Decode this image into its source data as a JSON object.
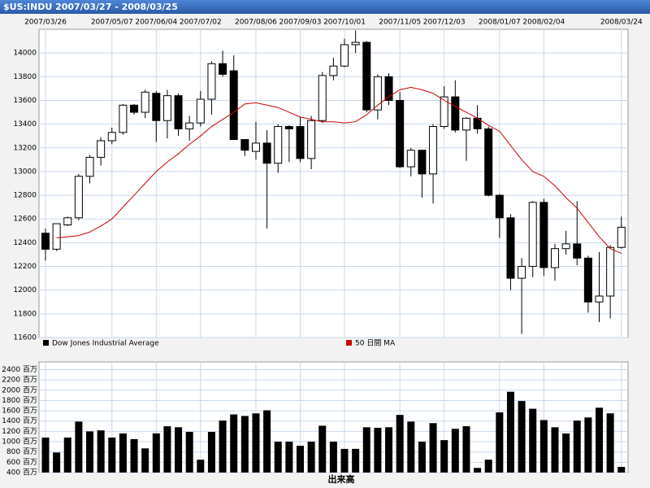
{
  "chart_data": [
    {
      "type": "candlestick",
      "title": "$US:INDU 2007/03/27 - 2008/03/25",
      "categories": [
        "2007/03/26",
        null,
        null,
        null,
        null,
        null,
        "2007/05/07",
        null,
        null,
        null,
        "2007/06/04",
        null,
        null,
        null,
        "2007/07/02",
        null,
        null,
        null,
        null,
        "2007/08/06",
        null,
        null,
        null,
        "2007/09/03",
        null,
        null,
        null,
        "2007/10/01",
        null,
        null,
        null,
        null,
        "2007/11/05",
        null,
        null,
        null,
        "2007/12/03",
        null,
        null,
        null,
        null,
        "2008/01/07",
        null,
        null,
        null,
        "2008/02/04",
        null,
        null,
        null,
        null,
        null,
        null,
        "2008/03/24"
      ],
      "series": [
        {
          "name": "Dow Jones Industrial Average",
          "color": "#000000",
          "open": [
            12480,
            12345,
            12550,
            12610,
            12960,
            13120,
            13260,
            13330,
            13560,
            13500,
            13660,
            13430,
            13640,
            13360,
            13410,
            13610,
            13910,
            13850,
            13270,
            13170,
            13240,
            13070,
            13380,
            13380,
            13110,
            13430,
            13810,
            13890,
            14070,
            14090,
            13520,
            13800,
            13600,
            13040,
            13180,
            12980,
            13380,
            13630,
            13350,
            13450,
            13360,
            12800,
            12610,
            12100,
            12200,
            12740,
            12190,
            12350,
            12390,
            12270,
            11900,
            11950,
            12360
          ],
          "high": [
            12520,
            12560,
            12620,
            12980,
            13140,
            13290,
            13370,
            13570,
            13570,
            13690,
            13680,
            13690,
            13660,
            13470,
            13680,
            13930,
            14020,
            13980,
            13270,
            13420,
            13350,
            13400,
            13390,
            13460,
            13470,
            13840,
            13960,
            14120,
            14190,
            14100,
            13820,
            13830,
            13670,
            13200,
            13180,
            13400,
            13720,
            13770,
            13460,
            13560,
            13380,
            12810,
            12640,
            12270,
            12750,
            12770,
            12390,
            12500,
            12750,
            12290,
            12320,
            12380,
            12620
          ],
          "low": [
            12250,
            12330,
            12540,
            12590,
            12900,
            13050,
            13230,
            13310,
            13480,
            13450,
            13250,
            13280,
            13300,
            13260,
            13380,
            13480,
            13800,
            13270,
            13130,
            13100,
            12520,
            12990,
            13080,
            13080,
            13020,
            13410,
            13770,
            13880,
            14000,
            13500,
            13440,
            13560,
            13030,
            12960,
            12780,
            12730,
            13360,
            13330,
            13090,
            13320,
            12790,
            12440,
            12000,
            11630,
            12110,
            12120,
            12080,
            12300,
            12210,
            11810,
            11730,
            11760,
            12350
          ],
          "close": [
            12345,
            12560,
            12610,
            12960,
            13120,
            13260,
            13330,
            13560,
            13500,
            13670,
            13430,
            13640,
            13360,
            13410,
            13610,
            13910,
            13820,
            13270,
            13180,
            13240,
            13070,
            13380,
            13360,
            13110,
            13430,
            13810,
            13890,
            14070,
            14090,
            13520,
            13800,
            13600,
            13040,
            13180,
            12980,
            13380,
            13630,
            13350,
            13450,
            13360,
            12800,
            12610,
            12100,
            12200,
            12740,
            12190,
            12350,
            12390,
            12270,
            11900,
            11950,
            12360,
            12530
          ]
        },
        {
          "name": "50 日間 MA",
          "type": "line",
          "color": "#cc0000",
          "values": [
            null,
            12440,
            12450,
            12460,
            12490,
            12540,
            12600,
            12700,
            12800,
            12900,
            13000,
            13080,
            13150,
            13230,
            13300,
            13380,
            13440,
            13500,
            13570,
            13580,
            13560,
            13540,
            13500,
            13460,
            13440,
            13420,
            13420,
            13410,
            13420,
            13480,
            13560,
            13630,
            13690,
            13710,
            13690,
            13660,
            13600,
            13550,
            13500,
            13450,
            13390,
            13340,
            13220,
            13100,
            13000,
            12960,
            12880,
            12780,
            12690,
            12570,
            12450,
            12350,
            12310
          ]
        }
      ],
      "ylim": [
        11600,
        14200
      ],
      "yticks": [
        11600,
        11800,
        12000,
        12200,
        12400,
        12600,
        12800,
        13000,
        13200,
        13400,
        13600,
        13800,
        14000
      ],
      "grid": true
    },
    {
      "type": "bar",
      "xlabel": "出来高",
      "color": "#000000",
      "values": [
        1080,
        790,
        1080,
        1390,
        1200,
        1220,
        1080,
        1160,
        1050,
        870,
        1160,
        1300,
        1280,
        1190,
        650,
        1190,
        1410,
        1530,
        1500,
        1550,
        1610,
        1000,
        1000,
        920,
        1000,
        1310,
        1000,
        860,
        860,
        1280,
        1270,
        1280,
        1520,
        1390,
        1000,
        1360,
        1030,
        1250,
        1300,
        490,
        650,
        1570,
        1970,
        1790,
        1640,
        1420,
        1280,
        1160,
        1410,
        1470,
        1660,
        1550,
        510
      ],
      "ylim": [
        400,
        2550
      ],
      "yticks": [
        {
          "value": 400,
          "label": "400 百万"
        },
        {
          "value": 600,
          "label": "600 百万"
        },
        {
          "value": 800,
          "label": "800 百万"
        },
        {
          "value": 1000,
          "label": "1000 百万"
        },
        {
          "value": 1200,
          "label": "1200 百万"
        },
        {
          "value": 1400,
          "label": "1400 百万"
        },
        {
          "value": 1600,
          "label": "1600 百万"
        },
        {
          "value": 1800,
          "label": "1800 百万"
        },
        {
          "value": 2000,
          "label": "2000 百万"
        },
        {
          "value": 2200,
          "label": "2200 百万"
        },
        {
          "value": 2400,
          "label": "2400 百万"
        }
      ],
      "grid": true
    }
  ]
}
